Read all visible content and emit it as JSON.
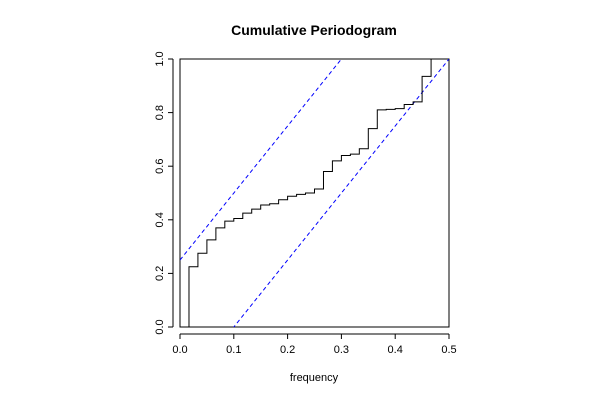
{
  "chart_data": {
    "type": "line",
    "title": "Cumulative Periodogram",
    "xlabel": "frequency",
    "ylabel": "",
    "xlim": [
      0,
      0.5
    ],
    "ylim": [
      0,
      1
    ],
    "x_ticks": [
      "0.0",
      "0.1",
      "0.2",
      "0.3",
      "0.4",
      "0.5"
    ],
    "y_ticks": [
      "0.0",
      "0.2",
      "0.4",
      "0.6",
      "0.8",
      "1.0"
    ],
    "grid": false,
    "series": [
      {
        "style": "step",
        "color": "#000000",
        "x": [
          0.0167,
          0.0167,
          0.0333,
          0.05,
          0.0667,
          0.0833,
          0.1,
          0.1167,
          0.1333,
          0.15,
          0.1667,
          0.1833,
          0.2,
          0.2167,
          0.2333,
          0.25,
          0.2667,
          0.2833,
          0.3,
          0.3167,
          0.3333,
          0.35,
          0.3667,
          0.3833,
          0.4,
          0.4167,
          0.4333,
          0.45,
          0.4667,
          0.4833
        ],
        "y": [
          0.0,
          0.225,
          0.275,
          0.325,
          0.37,
          0.395,
          0.405,
          0.425,
          0.44,
          0.455,
          0.46,
          0.475,
          0.488,
          0.495,
          0.5,
          0.515,
          0.58,
          0.62,
          0.64,
          0.645,
          0.665,
          0.74,
          0.81,
          0.812,
          0.815,
          0.83,
          0.84,
          0.935,
          1.0,
          1.0
        ]
      },
      {
        "style": "dashed",
        "color": "#0000ff",
        "x": [
          0.0,
          0.5
        ],
        "y": [
          0.25,
          1.5
        ]
      },
      {
        "style": "dashed",
        "color": "#0000ff",
        "x": [
          0.0,
          0.5
        ],
        "y": [
          -0.25,
          1.0
        ]
      }
    ]
  }
}
